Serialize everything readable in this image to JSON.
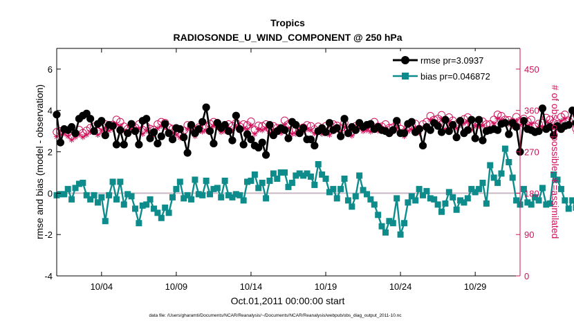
{
  "chart_data": {
    "type": "line",
    "title": "Tropics",
    "subtitle": "RADIOSONDE_U_WIND_COMPONENT @ 250 hPa",
    "xlabel": "Oct.01,2011 00:00:00 start",
    "ylabel_left": "rmse and bias (model - observation)",
    "ylabel_right": "# of obs: o=possible; ∗=assimilated",
    "footnote": "data file: /Users/gharamti/Documents/NCAR/Reanalysis/~/Documents/NCAR/Reanalysis/webpub/obs_diag_output_2011-10.nc",
    "xlim": [
      1,
      32
    ],
    "ylim_left": [
      -4,
      7
    ],
    "ylim_right": [
      0,
      495
    ],
    "x_ticks": [
      4,
      9,
      14,
      19,
      24,
      29
    ],
    "x_tick_labels": [
      "10/04",
      "10/09",
      "10/14",
      "10/19",
      "10/24",
      "10/29"
    ],
    "y_left_ticks": [
      -4,
      -2,
      0,
      2,
      4,
      6
    ],
    "y_left_tick_labels": [
      "-4",
      "-2",
      "0",
      "2",
      "4",
      "6"
    ],
    "y_right_ticks": [
      0,
      90,
      180,
      270,
      360,
      450
    ],
    "y_right_tick_labels": [
      "0",
      "90",
      "180",
      "270",
      "360",
      "450"
    ],
    "zero_line": 0,
    "legend": {
      "position": "top-right",
      "entries": [
        {
          "label": "rmse pr=3.0937",
          "series": "rmse"
        },
        {
          "label": "bias pr=0.046872",
          "series": "bias"
        }
      ]
    },
    "colors": {
      "rmse": "#000000",
      "bias": "#0e8c8c",
      "obs": "#d0105a",
      "zero": "#c9b8c4",
      "right_axis": "#d0105a"
    },
    "series": [
      {
        "name": "rmse",
        "axis": "left",
        "x_start": 1.0,
        "x_step": 0.25,
        "values": [
          3.8,
          2.45,
          3.1,
          3.05,
          3.2,
          2.9,
          3.6,
          3.75,
          3.85,
          3.6,
          3.0,
          3.35,
          3.5,
          2.8,
          3.3,
          3.25,
          2.35,
          3.05,
          2.35,
          2.9,
          3.35,
          3.0,
          2.35,
          3.5,
          3.6,
          2.65,
          2.95,
          2.4,
          2.75,
          3.35,
          2.9,
          2.6,
          3.15,
          3.1,
          2.7,
          1.95,
          3.3,
          2.9,
          3.1,
          3.45,
          4.15,
          3.0,
          2.4,
          3.4,
          3.15,
          3.3,
          3.0,
          2.55,
          3.75,
          3.1,
          2.35,
          2.85,
          2.6,
          2.3,
          2.2,
          2.45,
          1.85,
          3.3,
          2.8,
          3.0,
          3.15,
          3.05,
          2.65,
          3.45,
          3.3,
          2.9,
          3.15,
          2.6,
          2.6,
          2.3,
          3.0,
          3.15,
          2.95,
          3.4,
          3.05,
          3.15,
          2.75,
          3.6,
          2.9,
          3.2,
          3.05,
          3.4,
          3.2,
          3.3,
          3.35,
          3.1,
          3.2,
          3.05,
          3.0,
          2.9,
          3.05,
          3.5,
          2.9,
          2.9,
          3.35,
          3.45,
          2.95,
          3.1,
          2.3,
          3.2,
          3.05,
          3.4,
          3.25,
          2.95,
          3.55,
          3.0,
          3.3,
          2.7,
          3.5,
          2.9,
          3.05,
          3.55,
          2.65,
          3.55,
          2.55,
          3.0,
          3.05,
          3.1,
          3.05,
          3.35,
          3.4,
          2.85,
          3.4,
          3.2,
          2.0,
          3.5,
          3.1,
          3.05,
          2.95,
          3.0,
          4.1,
          3.1,
          3.2,
          2.8,
          3.25,
          3.1,
          3.25,
          3.3,
          4.0,
          3.4,
          3.35,
          2.95,
          3.15,
          3.05,
          2.6,
          3.6,
          3.15,
          2.9,
          2.95,
          3.25,
          3.4,
          3.15,
          3.5,
          3.1,
          3.65,
          2.95,
          2.95,
          3.05,
          2.85,
          3.35,
          2.95,
          3.3,
          3.4,
          4.2,
          3.1,
          3.2,
          2.5
        ]
      },
      {
        "name": "bias",
        "axis": "left",
        "x_start": 1.0,
        "x_step": 0.25,
        "values": [
          -0.1,
          -0.05,
          -0.05,
          0.2,
          -0.3,
          0.25,
          0.45,
          0.5,
          -0.1,
          -0.3,
          -0.1,
          -0.45,
          -0.2,
          -1.35,
          -0.1,
          0.55,
          -0.3,
          0.55,
          -0.55,
          -0.05,
          -0.15,
          -0.75,
          -1.45,
          -0.6,
          -0.55,
          -0.3,
          -0.75,
          -0.95,
          -1.2,
          -0.7,
          -0.95,
          -0.2,
          0.2,
          0.55,
          -0.25,
          -0.1,
          -0.3,
          0.65,
          -0.05,
          -0.1,
          0.6,
          -0.05,
          0.2,
          0.25,
          -0.2,
          0.6,
          -0.1,
          -0.2,
          -0.05,
          -0.1,
          -0.35,
          0.55,
          0.6,
          0.9,
          0.25,
          0.5,
          -0.25,
          0.6,
          0.95,
          0.7,
          1.0,
          1.0,
          0.3,
          0.5,
          0.85,
          0.95,
          0.85,
          0.95,
          0.8,
          0.4,
          1.4,
          0.9,
          0.7,
          0.05,
          0.2,
          -0.25,
          0.2,
          0.7,
          -0.35,
          -0.65,
          -0.15,
          0.85,
          0.15,
          -0.05,
          -0.3,
          -0.55,
          -1.05,
          -1.6,
          -1.9,
          -1.35,
          -1.45,
          -0.25,
          -2.0,
          -1.45,
          -0.45,
          -0.15,
          -0.35,
          0.2,
          -0.1,
          0.1,
          -0.25,
          -0.3,
          -0.55,
          -0.9,
          -0.5,
          0.05,
          -0.2,
          -0.8,
          -0.35,
          -0.45,
          -0.25,
          0.2,
          0.05,
          0.2,
          0.5,
          -0.5,
          1.35,
          0.75,
          0.5,
          0.95,
          2.15,
          1.5,
          0.75,
          -0.35,
          -0.55,
          0.2,
          -0.45,
          -0.55,
          -0.2,
          -0.35,
          0.25,
          -0.55,
          -0.5,
          0.9,
          0.65,
          0.2,
          -0.35,
          -0.75,
          -0.35,
          -0.7,
          -0.8,
          0.1,
          0.6,
          1.05,
          -0.5,
          -0.85,
          -0.15,
          -0.45,
          -0.55,
          -0.25,
          -0.5,
          -0.6,
          -1.0,
          -0.35,
          -0.3,
          -0.2,
          -0.9,
          -0.6,
          -0.5,
          -0.55,
          0.05,
          -0.1,
          1.35,
          0.2,
          0.85,
          0.8,
          0.85,
          0.3,
          0.8,
          0.25,
          0.35,
          0.75,
          -0.3,
          0.9,
          1.35,
          -0.4,
          0.45,
          -0.55,
          1.05,
          0.25,
          0.2,
          -0.3,
          0.5,
          0.05,
          0.05,
          -0.3,
          -0.1,
          2.05,
          0.5,
          -0.25,
          0.15,
          -0.1,
          -0.1,
          -0.2,
          -0.05,
          -0.1,
          0.05,
          -0.2,
          -0.3,
          -0.3,
          0.45,
          0.85
        ]
      },
      {
        "name": "obs_possible",
        "axis": "right",
        "x_start": 1.0,
        "x_step": 0.25,
        "values": [
          313,
          315,
          318,
          312,
          305,
          310,
          318,
          311,
          316,
          322,
          325,
          315,
          326,
          330,
          325,
          329,
          340,
          335,
          325,
          320,
          327,
          323,
          330,
          318,
          325,
          320,
          318,
          330,
          335,
          333,
          323,
          320,
          316,
          310,
          316,
          328,
          325,
          313,
          323,
          323,
          325,
          331,
          335,
          333,
          322,
          324,
          330,
          326,
          333,
          325,
          330,
          328,
          336,
          318,
          327,
          326,
          330,
          320,
          326,
          322,
          320,
          338,
          330,
          318,
          318,
          320,
          323,
          328,
          326,
          319,
          325,
          318,
          326,
          316,
          330,
          327,
          321,
          333,
          317,
          314,
          326,
          330,
          324,
          326,
          323,
          335,
          325,
          325,
          330,
          322,
          323,
          331,
          320,
          313,
          324,
          327,
          331,
          320,
          330,
          335,
          348,
          340,
          342,
          350,
          328,
          345,
          338,
          330,
          337,
          341,
          345,
          327,
          335,
          335,
          336,
          330,
          330,
          340,
          351,
          348,
          340,
          339,
          335,
          346,
          337,
          342,
          336,
          340,
          325,
          331,
          333,
          344,
          340,
          333,
          330,
          346,
          351,
          338,
          340,
          320,
          337,
          330,
          337,
          330,
          329,
          335,
          341,
          339,
          338,
          322,
          346,
          330,
          350,
          341,
          338,
          336,
          348,
          350,
          345,
          340,
          342,
          320,
          330,
          332,
          330,
          336,
          343,
          340,
          333,
          341,
          338,
          331,
          320,
          329,
          345,
          332,
          346,
          350,
          336,
          328,
          333,
          330,
          330,
          310,
          318,
          322
        ]
      },
      {
        "name": "obs_assimilated",
        "axis": "right",
        "x_start": 1.0,
        "x_step": 0.25,
        "values": [
          303,
          307,
          310,
          304,
          296,
          302,
          308,
          302,
          307,
          313,
          316,
          307,
          316,
          321,
          316,
          320,
          330,
          326,
          316,
          311,
          318,
          314,
          320,
          309,
          316,
          311,
          309,
          321,
          326,
          324,
          314,
          311,
          307,
          301,
          307,
          319,
          316,
          304,
          314,
          314,
          316,
          322,
          326,
          324,
          313,
          315,
          321,
          317,
          324,
          316,
          321,
          319,
          327,
          309,
          318,
          317,
          321,
          311,
          317,
          313,
          311,
          329,
          321,
          309,
          309,
          311,
          314,
          319,
          317,
          310,
          316,
          309,
          317,
          307,
          321,
          318,
          312,
          324,
          308,
          305,
          317,
          321,
          315,
          317,
          314,
          326,
          316,
          316,
          321,
          313,
          314,
          322,
          311,
          304,
          315,
          318,
          322,
          311,
          321,
          326,
          339,
          331,
          333,
          341,
          319,
          336,
          329,
          321,
          328,
          332,
          336,
          318,
          326,
          326,
          327,
          321,
          321,
          331,
          342,
          339,
          331,
          330,
          326,
          337,
          328,
          333,
          327,
          331,
          316,
          322,
          324,
          335,
          331,
          324,
          321,
          337,
          342,
          329,
          331,
          311,
          328,
          321,
          328,
          321,
          320,
          326,
          332,
          330,
          329,
          313,
          337,
          321,
          341,
          332,
          329,
          327,
          339,
          341,
          336,
          331,
          333,
          311,
          321,
          323,
          321,
          327,
          334,
          331,
          324,
          332,
          329,
          322,
          311,
          320,
          336,
          323,
          337,
          341,
          327,
          319,
          324,
          321,
          321,
          301,
          309,
          313
        ]
      }
    ]
  }
}
